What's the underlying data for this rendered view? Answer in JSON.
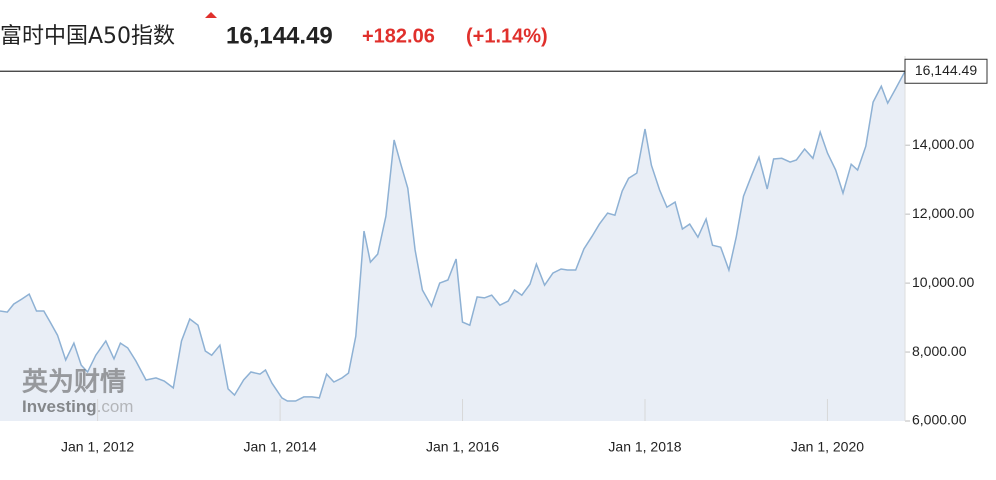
{
  "chart_data": {
    "type": "area",
    "title": "富时中国A50指数",
    "price": "16,144.49",
    "change": "+182.06",
    "change_percent": "(+1.14%)",
    "watermark": {
      "brand": "英为财情",
      "site_name": "Investing",
      "site_domain": ".com"
    },
    "color": "#8eb1d4",
    "fill": "#e9eef6",
    "up_color": "#e0302c",
    "x": [
      2010.93,
      2011.01,
      2011.08,
      2011.17,
      2011.25,
      2011.33,
      2011.41,
      2011.48,
      2011.56,
      2011.65,
      2011.74,
      2011.82,
      2011.89,
      2011.98,
      2012.09,
      2012.18,
      2012.25,
      2012.33,
      2012.42,
      2012.53,
      2012.64,
      2012.73,
      2012.83,
      2012.92,
      2013.01,
      2013.1,
      2013.18,
      2013.25,
      2013.34,
      2013.43,
      2013.5,
      2013.6,
      2013.68,
      2013.78,
      2013.84,
      2013.91,
      2014.02,
      2014.08,
      2014.17,
      2014.26,
      2014.35,
      2014.43,
      2014.51,
      2014.59,
      2014.68,
      2014.75,
      2014.83,
      2014.92,
      2014.99,
      2015.07,
      2015.16,
      2015.25,
      2015.32,
      2015.4,
      2015.48,
      2015.56,
      2015.66,
      2015.75,
      2015.84,
      2015.93,
      2016.0,
      2016.08,
      2016.16,
      2016.24,
      2016.32,
      2016.41,
      2016.5,
      2016.57,
      2016.65,
      2016.74,
      2016.81,
      2016.9,
      2016.99,
      2017.08,
      2017.15,
      2017.24,
      2017.33,
      2017.42,
      2017.5,
      2017.59,
      2017.67,
      2017.75,
      2017.82,
      2017.91,
      2018.0,
      2018.07,
      2018.16,
      2018.24,
      2018.33,
      2018.41,
      2018.49,
      2018.58,
      2018.67,
      2018.74,
      2018.83,
      2018.92,
      2019.0,
      2019.08,
      2019.17,
      2019.25,
      2019.34,
      2019.41,
      2019.5,
      2019.59,
      2019.66,
      2019.75,
      2019.84,
      2019.92,
      2020.0,
      2020.09,
      2020.17,
      2020.26,
      2020.33,
      2020.42,
      2020.5,
      2020.59,
      2020.66,
      2020.75,
      2020.85
    ],
    "values": [
      9190,
      9160,
      9390,
      9540,
      9680,
      9190,
      9190,
      8870,
      8490,
      7770,
      8260,
      7620,
      7420,
      7910,
      8320,
      7800,
      8260,
      8120,
      7740,
      7190,
      7250,
      7160,
      6960,
      8320,
      8960,
      8780,
      8030,
      7910,
      8200,
      6930,
      6750,
      7190,
      7420,
      7360,
      7480,
      7100,
      6670,
      6580,
      6580,
      6700,
      6700,
      6670,
      7360,
      7130,
      7250,
      7390,
      8460,
      11510,
      10610,
      10840,
      11940,
      14150,
      13480,
      12750,
      10960,
      9800,
      9330,
      10000,
      10090,
      10700,
      8870,
      8780,
      9600,
      9570,
      9650,
      9360,
      9480,
      9800,
      9650,
      9970,
      10550,
      9940,
      10290,
      10410,
      10380,
      10380,
      10990,
      11360,
      11710,
      12030,
      11970,
      12670,
      13040,
      13190,
      14470,
      13420,
      12700,
      12200,
      12350,
      11570,
      11710,
      11330,
      11860,
      11100,
      11040,
      10380,
      11330,
      12520,
      13130,
      13650,
      12730,
      13600,
      13620,
      13510,
      13570,
      13890,
      13620,
      14380,
      13770,
      13280,
      12610,
      13450,
      13280,
      13970,
      15250,
      15710,
      15220,
      15650,
      16144.49
    ],
    "xlim": [
      2010.93,
      2020.85
    ],
    "xticks": [
      {
        "value": 2012,
        "label": "Jan 1, 2012"
      },
      {
        "value": 2014,
        "label": "Jan 1, 2014"
      },
      {
        "value": 2016,
        "label": "Jan 1, 2016"
      },
      {
        "value": 2018,
        "label": "Jan 1, 2018"
      },
      {
        "value": 2020,
        "label": "Jan 1, 2020"
      }
    ],
    "ylim": [
      6000,
      16500
    ],
    "yticks": [
      {
        "value": 6000,
        "label": "6,000.00"
      },
      {
        "value": 8000,
        "label": "8,000.00"
      },
      {
        "value": 10000,
        "label": "10,000.00"
      },
      {
        "value": 12000,
        "label": "12,000.00"
      },
      {
        "value": 14000,
        "label": "14,000.00"
      }
    ],
    "grid": false
  }
}
